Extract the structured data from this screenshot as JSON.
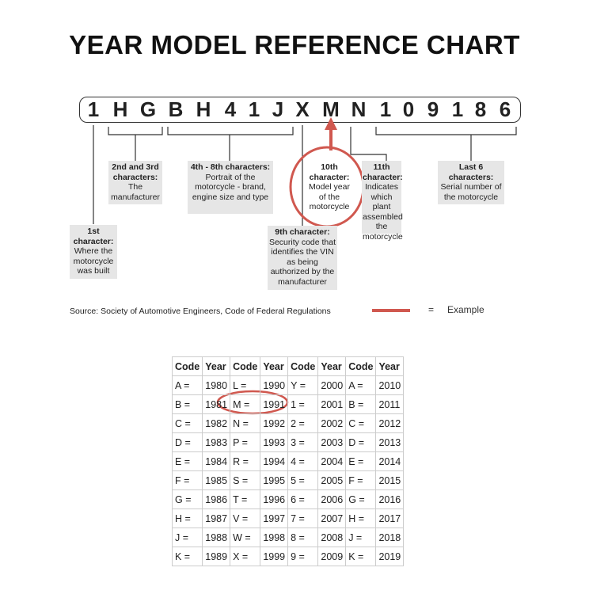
{
  "title": "YEAR MODEL REFERENCE CHART",
  "vin": [
    "1",
    "H",
    "G",
    "B",
    "H",
    "4",
    "1",
    "J",
    "X",
    "M",
    "N",
    "1",
    "0",
    "9",
    "1",
    "8",
    "6"
  ],
  "labels": {
    "first": {
      "head": "1st character:",
      "body": "Where the motorcycle was built"
    },
    "second_third": {
      "head": "2nd and 3rd characters:",
      "body": "The manufacturer"
    },
    "fourth_eighth": {
      "head": "4th - 8th characters:",
      "body": "Portrait of the motorcycle - brand, engine size and type"
    },
    "ninth": {
      "head": "9th character:",
      "body": "Security code that identifies the VIN as being authorized by the manufacturer"
    },
    "tenth": {
      "head": "10th character:",
      "body": "Model year of the motorcycle"
    },
    "eleventh": {
      "head": "11th character:",
      "body": "Indicates which plant assembled the motorcycle"
    },
    "last_six": {
      "head": "Last 6 characters:",
      "body": "Serial number of the motorcycle"
    }
  },
  "source": "Source:  Society of Automotive Engineers, Code of Federal Regulations",
  "legend": {
    "equals": "=",
    "label": "Example",
    "color": "#d0584f"
  },
  "table": {
    "headers": [
      "Code",
      "Year",
      "Code",
      "Year",
      "Code",
      "Year",
      "Code",
      "Year"
    ],
    "rows": [
      [
        "A =",
        "1980",
        "L =",
        "1990",
        "Y =",
        "2000",
        "A =",
        "2010"
      ],
      [
        "B =",
        "1981",
        "M =",
        "1991",
        "1 =",
        "2001",
        "B =",
        "2011"
      ],
      [
        "C =",
        "1982",
        "N =",
        "1992",
        "2 =",
        "2002",
        "C =",
        "2012"
      ],
      [
        "D =",
        "1983",
        "P =",
        "1993",
        "3 =",
        "2003",
        "D =",
        "2013"
      ],
      [
        "E =",
        "1984",
        "R =",
        "1994",
        "4 =",
        "2004",
        "E =",
        "2014"
      ],
      [
        "F =",
        "1985",
        "S =",
        "1995",
        "5 =",
        "2005",
        "F =",
        "2015"
      ],
      [
        "G =",
        "1986",
        "T =",
        "1996",
        "6 =",
        "2006",
        "G =",
        "2016"
      ],
      [
        "H =",
        "1987",
        "V =",
        "1997",
        "7 =",
        "2007",
        "H =",
        "2017"
      ],
      [
        "J =",
        "1988",
        "W =",
        "1998",
        "8 =",
        "2008",
        "J =",
        "2018"
      ],
      [
        "K =",
        "1989",
        "X =",
        "1999",
        "9 =",
        "2009",
        "K =",
        "2019"
      ]
    ]
  }
}
